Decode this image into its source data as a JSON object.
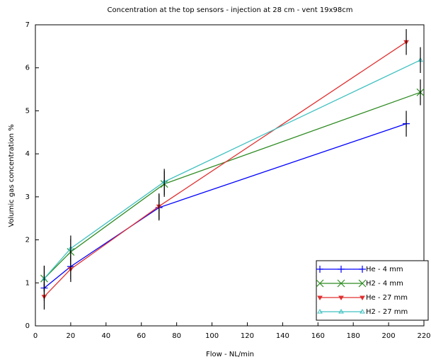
{
  "chart_data": {
    "type": "line",
    "title": "Concentration at the top sensors - injection at 28 cm - vent 19x98cm",
    "xlabel": "Flow - NL/min",
    "ylabel": "Volumic gas concentration %",
    "xlim": [
      0,
      220
    ],
    "xticks": [
      0,
      20,
      40,
      60,
      80,
      100,
      120,
      140,
      160,
      180,
      200,
      220
    ],
    "ylim": [
      0,
      7
    ],
    "yticks": [
      0,
      1,
      2,
      3,
      4,
      5,
      6,
      7
    ],
    "grid": false,
    "legend": "lower right",
    "series": [
      {
        "name": "He - 4 mm",
        "color": "#0000ff",
        "marker": "plus",
        "x": [
          5,
          20,
          70,
          210
        ],
        "values": [
          0.88,
          1.38,
          2.75,
          4.7
        ],
        "errors": [
          0.3,
          0.3,
          0.3,
          0.3
        ]
      },
      {
        "name": "H2 - 4 mm",
        "color": "#2e8b22",
        "marker": "cross",
        "x": [
          5,
          20,
          73,
          218
        ],
        "values": [
          1.1,
          1.72,
          3.3,
          5.43
        ],
        "errors": [
          0.3,
          0.3,
          0.3,
          0.3
        ]
      },
      {
        "name": "He - 27 mm",
        "color": "#e03030",
        "marker": "triangle-down",
        "x": [
          5,
          20,
          70,
          210
        ],
        "values": [
          0.68,
          1.32,
          2.78,
          6.6
        ],
        "errors": [
          0.3,
          0.3,
          0.3,
          0.3
        ]
      },
      {
        "name": "H2 - 27 mm",
        "color": "#40c0c0",
        "marker": "triangle-up",
        "x": [
          5,
          20,
          73,
          218
        ],
        "values": [
          1.1,
          1.8,
          3.35,
          6.18
        ],
        "errors": [
          0.3,
          0.3,
          0.3,
          0.3
        ]
      }
    ]
  }
}
